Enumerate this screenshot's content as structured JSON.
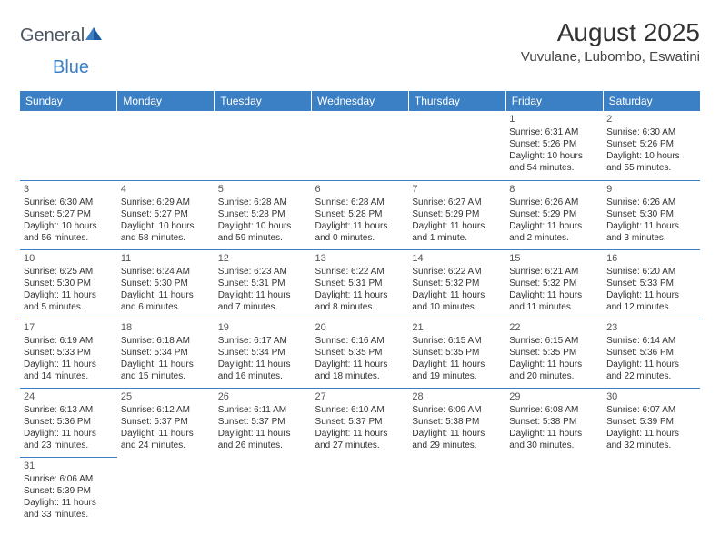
{
  "logo": {
    "text1": "General",
    "text2": "Blue"
  },
  "title": "August 2025",
  "location": "Vuvulane, Lubombo, Eswatini",
  "dayHeaders": [
    "Sunday",
    "Monday",
    "Tuesday",
    "Wednesday",
    "Thursday",
    "Friday",
    "Saturday"
  ],
  "colors": {
    "headerBg": "#3b7fc4",
    "headerText": "#ffffff",
    "borderColor": "#3b7fc4",
    "textColor": "#333333",
    "background": "#ffffff"
  },
  "typography": {
    "titleFontSize": 28,
    "locationFontSize": 15,
    "headerFontSize": 12,
    "cellFontSize": 10,
    "dayNumFontSize": 11
  },
  "weeks": [
    [
      null,
      null,
      null,
      null,
      null,
      {
        "n": "1",
        "sunrise": "Sunrise: 6:31 AM",
        "sunset": "Sunset: 5:26 PM",
        "daylight": "Daylight: 10 hours and 54 minutes."
      },
      {
        "n": "2",
        "sunrise": "Sunrise: 6:30 AM",
        "sunset": "Sunset: 5:26 PM",
        "daylight": "Daylight: 10 hours and 55 minutes."
      }
    ],
    [
      {
        "n": "3",
        "sunrise": "Sunrise: 6:30 AM",
        "sunset": "Sunset: 5:27 PM",
        "daylight": "Daylight: 10 hours and 56 minutes."
      },
      {
        "n": "4",
        "sunrise": "Sunrise: 6:29 AM",
        "sunset": "Sunset: 5:27 PM",
        "daylight": "Daylight: 10 hours and 58 minutes."
      },
      {
        "n": "5",
        "sunrise": "Sunrise: 6:28 AM",
        "sunset": "Sunset: 5:28 PM",
        "daylight": "Daylight: 10 hours and 59 minutes."
      },
      {
        "n": "6",
        "sunrise": "Sunrise: 6:28 AM",
        "sunset": "Sunset: 5:28 PM",
        "daylight": "Daylight: 11 hours and 0 minutes."
      },
      {
        "n": "7",
        "sunrise": "Sunrise: 6:27 AM",
        "sunset": "Sunset: 5:29 PM",
        "daylight": "Daylight: 11 hours and 1 minute."
      },
      {
        "n": "8",
        "sunrise": "Sunrise: 6:26 AM",
        "sunset": "Sunset: 5:29 PM",
        "daylight": "Daylight: 11 hours and 2 minutes."
      },
      {
        "n": "9",
        "sunrise": "Sunrise: 6:26 AM",
        "sunset": "Sunset: 5:30 PM",
        "daylight": "Daylight: 11 hours and 3 minutes."
      }
    ],
    [
      {
        "n": "10",
        "sunrise": "Sunrise: 6:25 AM",
        "sunset": "Sunset: 5:30 PM",
        "daylight": "Daylight: 11 hours and 5 minutes."
      },
      {
        "n": "11",
        "sunrise": "Sunrise: 6:24 AM",
        "sunset": "Sunset: 5:30 PM",
        "daylight": "Daylight: 11 hours and 6 minutes."
      },
      {
        "n": "12",
        "sunrise": "Sunrise: 6:23 AM",
        "sunset": "Sunset: 5:31 PM",
        "daylight": "Daylight: 11 hours and 7 minutes."
      },
      {
        "n": "13",
        "sunrise": "Sunrise: 6:22 AM",
        "sunset": "Sunset: 5:31 PM",
        "daylight": "Daylight: 11 hours and 8 minutes."
      },
      {
        "n": "14",
        "sunrise": "Sunrise: 6:22 AM",
        "sunset": "Sunset: 5:32 PM",
        "daylight": "Daylight: 11 hours and 10 minutes."
      },
      {
        "n": "15",
        "sunrise": "Sunrise: 6:21 AM",
        "sunset": "Sunset: 5:32 PM",
        "daylight": "Daylight: 11 hours and 11 minutes."
      },
      {
        "n": "16",
        "sunrise": "Sunrise: 6:20 AM",
        "sunset": "Sunset: 5:33 PM",
        "daylight": "Daylight: 11 hours and 12 minutes."
      }
    ],
    [
      {
        "n": "17",
        "sunrise": "Sunrise: 6:19 AM",
        "sunset": "Sunset: 5:33 PM",
        "daylight": "Daylight: 11 hours and 14 minutes."
      },
      {
        "n": "18",
        "sunrise": "Sunrise: 6:18 AM",
        "sunset": "Sunset: 5:34 PM",
        "daylight": "Daylight: 11 hours and 15 minutes."
      },
      {
        "n": "19",
        "sunrise": "Sunrise: 6:17 AM",
        "sunset": "Sunset: 5:34 PM",
        "daylight": "Daylight: 11 hours and 16 minutes."
      },
      {
        "n": "20",
        "sunrise": "Sunrise: 6:16 AM",
        "sunset": "Sunset: 5:35 PM",
        "daylight": "Daylight: 11 hours and 18 minutes."
      },
      {
        "n": "21",
        "sunrise": "Sunrise: 6:15 AM",
        "sunset": "Sunset: 5:35 PM",
        "daylight": "Daylight: 11 hours and 19 minutes."
      },
      {
        "n": "22",
        "sunrise": "Sunrise: 6:15 AM",
        "sunset": "Sunset: 5:35 PM",
        "daylight": "Daylight: 11 hours and 20 minutes."
      },
      {
        "n": "23",
        "sunrise": "Sunrise: 6:14 AM",
        "sunset": "Sunset: 5:36 PM",
        "daylight": "Daylight: 11 hours and 22 minutes."
      }
    ],
    [
      {
        "n": "24",
        "sunrise": "Sunrise: 6:13 AM",
        "sunset": "Sunset: 5:36 PM",
        "daylight": "Daylight: 11 hours and 23 minutes."
      },
      {
        "n": "25",
        "sunrise": "Sunrise: 6:12 AM",
        "sunset": "Sunset: 5:37 PM",
        "daylight": "Daylight: 11 hours and 24 minutes."
      },
      {
        "n": "26",
        "sunrise": "Sunrise: 6:11 AM",
        "sunset": "Sunset: 5:37 PM",
        "daylight": "Daylight: 11 hours and 26 minutes."
      },
      {
        "n": "27",
        "sunrise": "Sunrise: 6:10 AM",
        "sunset": "Sunset: 5:37 PM",
        "daylight": "Daylight: 11 hours and 27 minutes."
      },
      {
        "n": "28",
        "sunrise": "Sunrise: 6:09 AM",
        "sunset": "Sunset: 5:38 PM",
        "daylight": "Daylight: 11 hours and 29 minutes."
      },
      {
        "n": "29",
        "sunrise": "Sunrise: 6:08 AM",
        "sunset": "Sunset: 5:38 PM",
        "daylight": "Daylight: 11 hours and 30 minutes."
      },
      {
        "n": "30",
        "sunrise": "Sunrise: 6:07 AM",
        "sunset": "Sunset: 5:39 PM",
        "daylight": "Daylight: 11 hours and 32 minutes."
      }
    ],
    [
      {
        "n": "31",
        "sunrise": "Sunrise: 6:06 AM",
        "sunset": "Sunset: 5:39 PM",
        "daylight": "Daylight: 11 hours and 33 minutes."
      },
      null,
      null,
      null,
      null,
      null,
      null
    ]
  ]
}
